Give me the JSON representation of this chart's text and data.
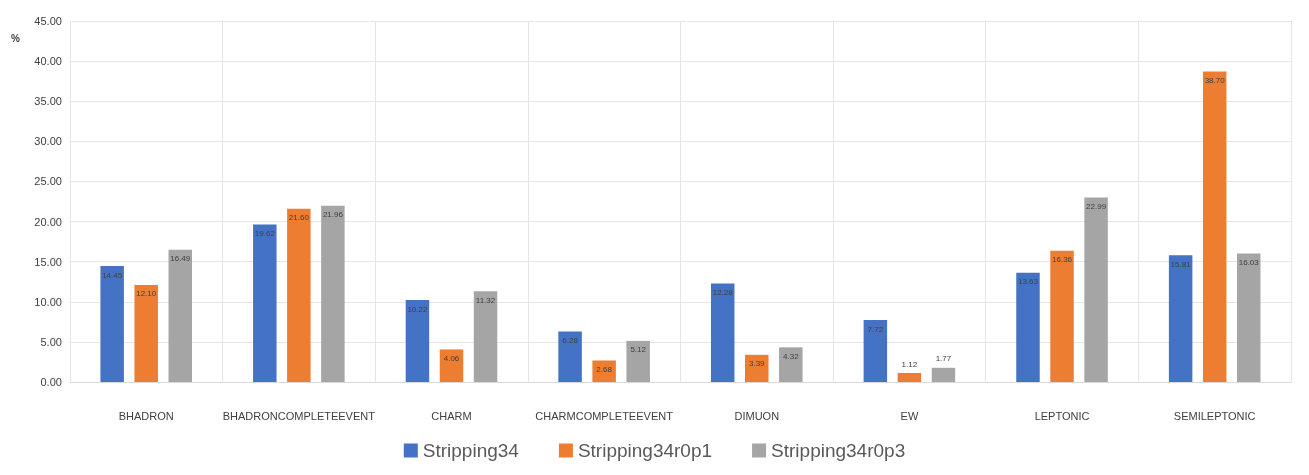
{
  "chart_data": {
    "type": "bar",
    "ylabel": "%",
    "categories": [
      "BHADRON",
      "BHADRONCOMPLETEEVENT",
      "CHARM",
      "CHARMCOMPLETEEVENT",
      "DIMUON",
      "EW",
      "LEPTONIC",
      "SEMILEPTONIC"
    ],
    "series": [
      {
        "name": "Stripping34",
        "color": "#4472c4",
        "values": [
          14.45,
          19.62,
          10.22,
          6.28,
          12.28,
          7.72,
          13.63,
          15.81
        ],
        "value_labels": [
          "14.45",
          "19.62",
          "10.22",
          "6.28",
          "12.28",
          "7.72",
          "13.63",
          "15.81"
        ]
      },
      {
        "name": "Stripping34r0p1",
        "color": "#ed7d31",
        "values": [
          12.1,
          21.6,
          4.06,
          2.68,
          3.39,
          1.12,
          16.36,
          38.7
        ],
        "value_labels": [
          "12.10",
          "21.60",
          "4.06",
          "2.68",
          "3.39",
          "1.12",
          "16.36",
          "38.70"
        ]
      },
      {
        "name": "Stripping34r0p3",
        "color": "#a5a5a5",
        "values": [
          16.49,
          21.96,
          11.32,
          5.12,
          4.32,
          1.77,
          22.99,
          16.03
        ],
        "value_labels": [
          "16.49",
          "21.96",
          "11.32",
          "5.12",
          "4.32",
          "1.77",
          "22.99",
          "16.03"
        ]
      }
    ],
    "ylim": [
      0,
      45
    ],
    "yticks": [
      {
        "value": 0,
        "label": "0.00"
      },
      {
        "value": 5,
        "label": "5.00"
      },
      {
        "value": 10,
        "label": "10.00"
      },
      {
        "value": 15,
        "label": "15.00"
      },
      {
        "value": 20,
        "label": "20.00"
      },
      {
        "value": 25,
        "label": "25.00"
      },
      {
        "value": 30,
        "label": "30.00"
      },
      {
        "value": 35,
        "label": "35.00"
      },
      {
        "value": 40,
        "label": "40.00"
      },
      {
        "value": 45,
        "label": "45.00"
      }
    ],
    "grid": true,
    "legend": "bottom"
  }
}
